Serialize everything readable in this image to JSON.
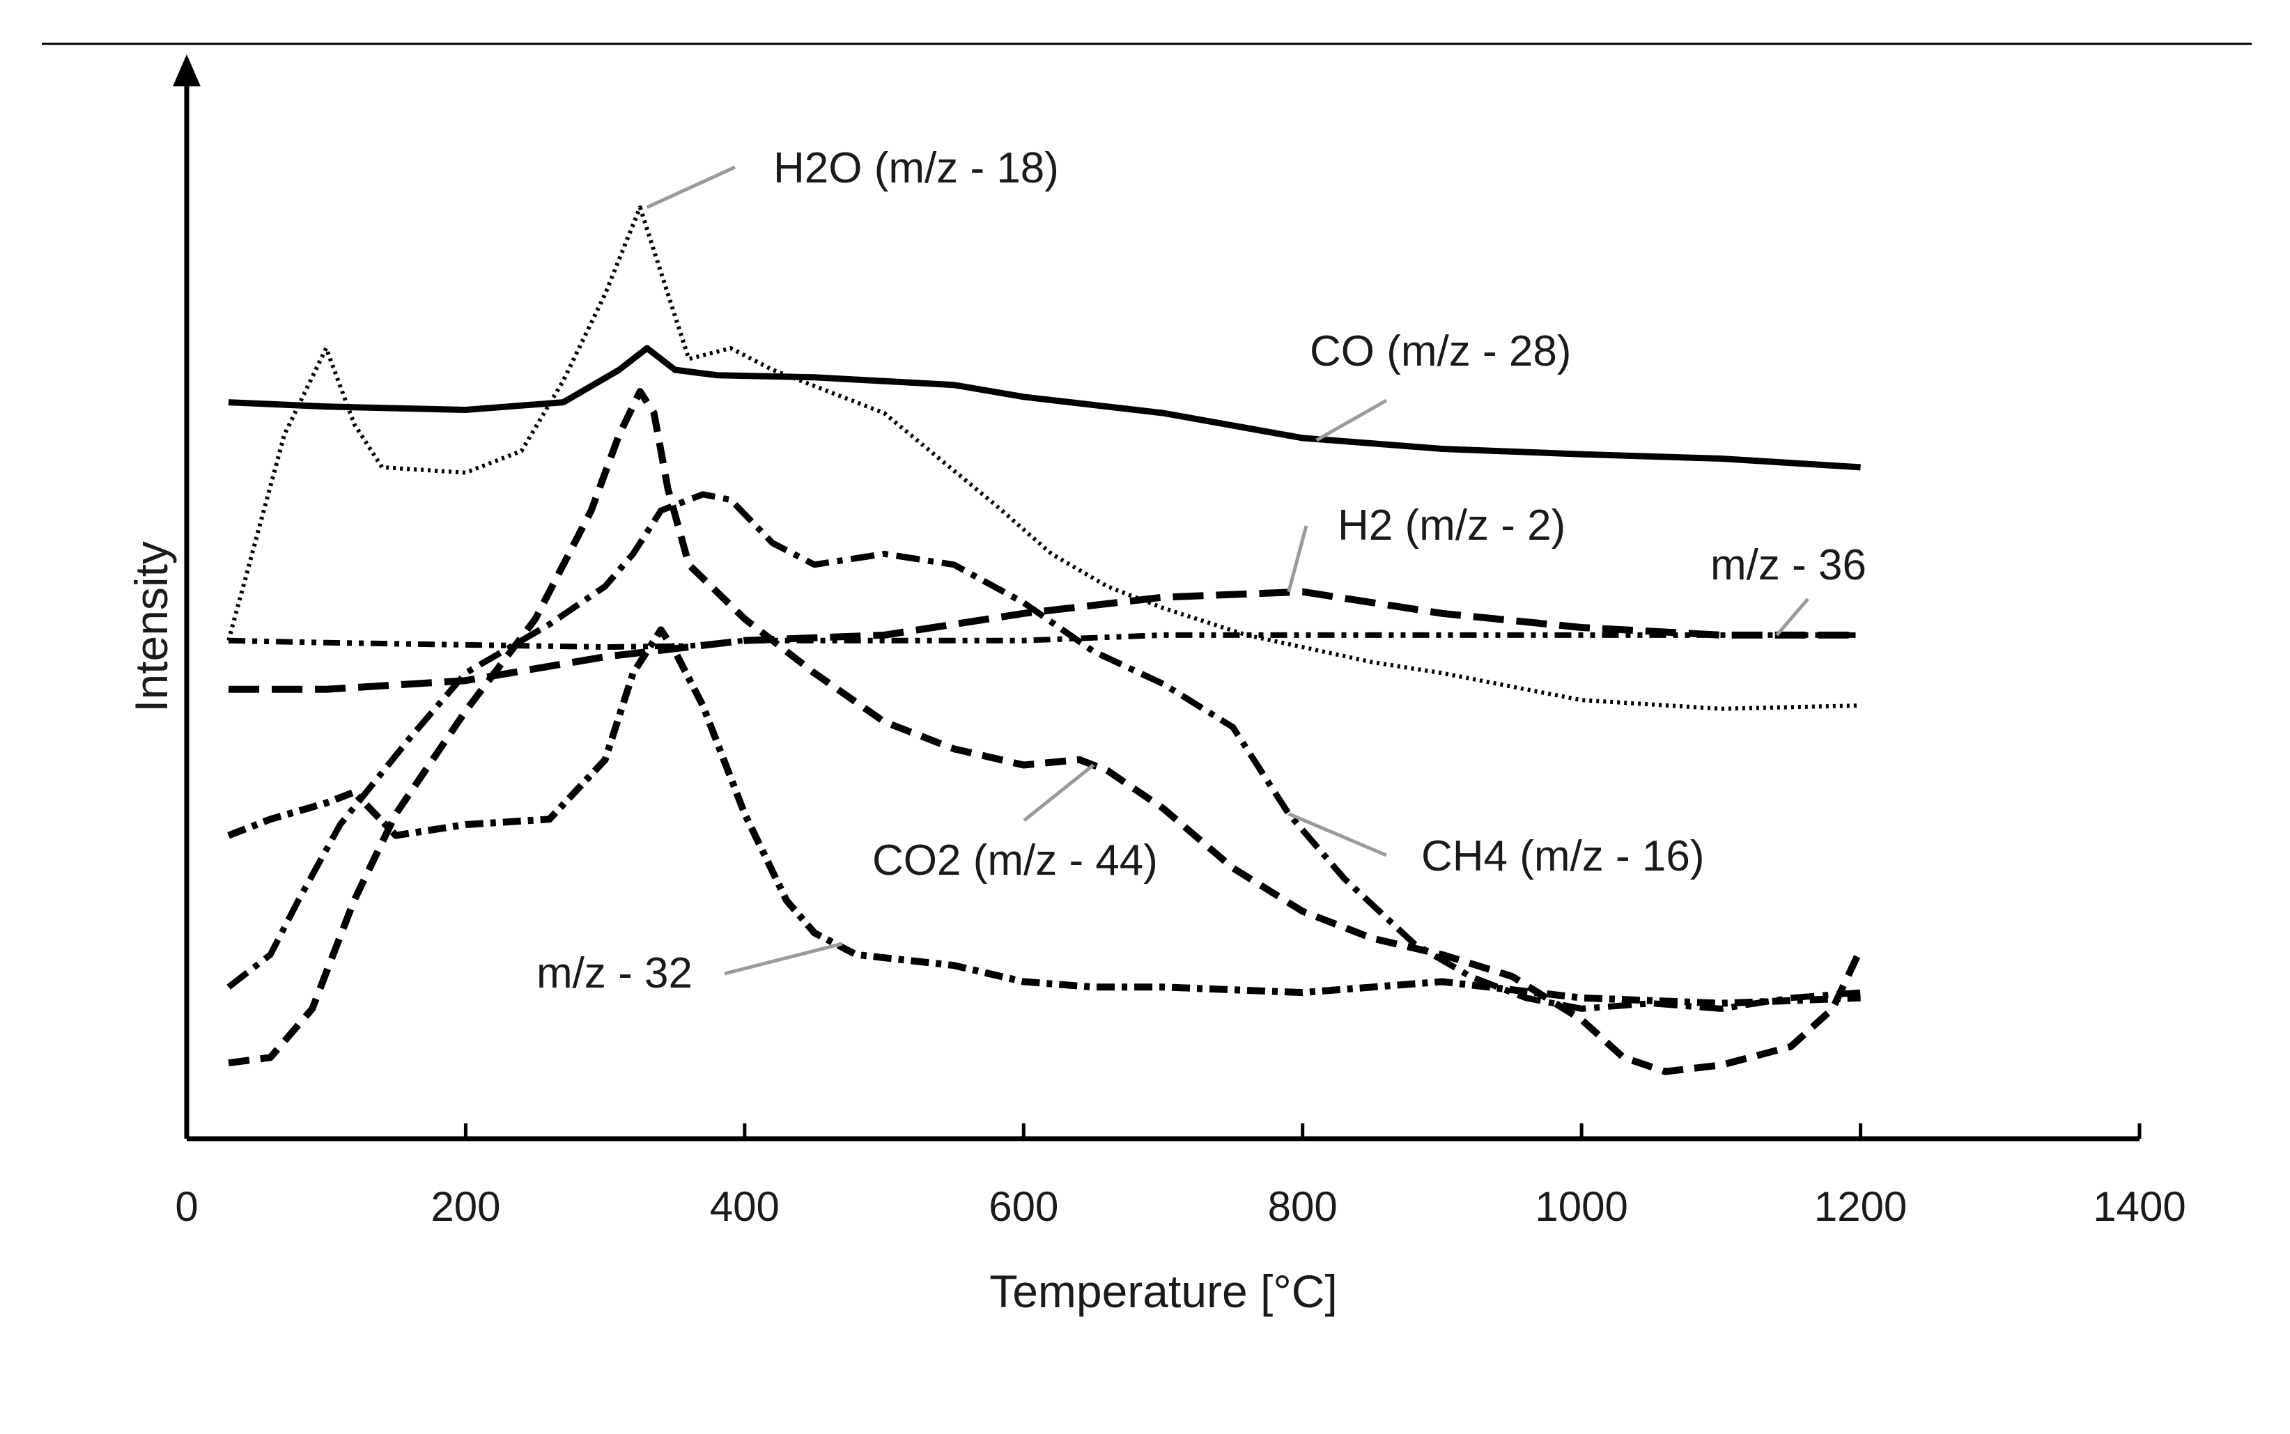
{
  "chart_data": {
    "type": "line",
    "title": "",
    "xlabel": "Temperature [°C]",
    "ylabel": "Intensity",
    "xlim": [
      0,
      1400
    ],
    "ylim": [
      0,
      100
    ],
    "y_ticks_shown": false,
    "grid": false,
    "x_ticks": [
      0,
      200,
      400,
      600,
      800,
      1000,
      1200,
      1400
    ],
    "x_tick_labels": [
      "0",
      "200",
      "400",
      "600",
      "800",
      "1000",
      "1200",
      "1400"
    ],
    "series": [
      {
        "name": "CO (m/z - 28)",
        "style": "solid",
        "x": [
          30,
          100,
          200,
          270,
          310,
          330,
          350,
          380,
          450,
          550,
          600,
          700,
          800,
          900,
          1000,
          1100,
          1200
        ],
        "y": [
          68,
          67.6,
          67.3,
          68,
          71,
          73,
          71,
          70.5,
          70.3,
          69.6,
          68.5,
          67,
          64.7,
          63.7,
          63.2,
          62.8,
          62
        ]
      },
      {
        "name": "H2O (m/z - 18)",
        "style": "dotted",
        "x": [
          30,
          70,
          100,
          120,
          140,
          200,
          240,
          270,
          300,
          325,
          345,
          360,
          390,
          420,
          500,
          580,
          620,
          660,
          700,
          760,
          850,
          900,
          1000,
          1100,
          1200
        ],
        "y": [
          46,
          65,
          73,
          66,
          62,
          61.5,
          63.5,
          70,
          78,
          86,
          78,
          72,
          73,
          71,
          67,
          58.5,
          54,
          51,
          49,
          46.5,
          44,
          43,
          40.5,
          39.7,
          40
        ]
      },
      {
        "name": "H2 (m/z - 2)",
        "style": "long-dash",
        "x": [
          30,
          100,
          200,
          300,
          400,
          500,
          600,
          700,
          800,
          900,
          1000,
          1100,
          1200
        ],
        "y": [
          41.5,
          41.5,
          42.3,
          44.5,
          46,
          46.5,
          48.5,
          50,
          50.5,
          48.5,
          47.2,
          46.5,
          46.5
        ]
      },
      {
        "name": "m/z - 36",
        "style": "dash-dot-dot",
        "x": [
          30,
          100,
          200,
          300,
          360,
          400,
          500,
          600,
          700,
          800,
          900,
          1000,
          1100,
          1200
        ],
        "y": [
          46,
          45.8,
          45.6,
          45.4,
          45.5,
          46,
          46,
          46,
          46.5,
          46.5,
          46.5,
          46.5,
          46.5,
          46.5
        ]
      },
      {
        "name": "CO2 (m/z - 44)",
        "style": "dashed",
        "x": [
          30,
          60,
          90,
          120,
          150,
          200,
          250,
          290,
          310,
          325,
          335,
          345,
          360,
          400,
          450,
          500,
          550,
          600,
          640,
          660,
          700,
          750,
          800,
          850,
          900,
          950,
          1000,
          1030,
          1060,
          1100,
          1150,
          1180,
          1200
        ],
        "y": [
          7,
          7.5,
          12,
          22,
          30,
          39.5,
          48,
          58,
          65,
          69,
          67,
          60,
          53,
          48,
          43,
          38.5,
          36,
          34.5,
          35,
          34,
          30.5,
          25,
          21,
          18.5,
          17,
          15,
          11,
          7.5,
          6.2,
          6.8,
          8.5,
          12,
          17.5
        ]
      },
      {
        "name": "CH4 (m/z - 16)",
        "style": "dash-dot",
        "x": [
          30,
          60,
          80,
          110,
          160,
          200,
          260,
          300,
          320,
          340,
          370,
          390,
          420,
          450,
          500,
          550,
          600,
          650,
          700,
          750,
          790,
          830,
          880,
          920,
          960,
          1000,
          1050,
          1100,
          1150,
          1200
        ],
        "y": [
          14,
          17,
          22,
          29,
          37,
          43,
          47.5,
          51,
          54,
          58,
          59.5,
          59,
          55,
          53,
          54,
          53,
          49.5,
          45,
          42,
          38,
          30,
          24,
          18,
          15,
          13,
          12,
          12.5,
          12,
          13,
          13.5
        ]
      },
      {
        "name": "m/z - 32",
        "style": "dash-dot-dash",
        "x": [
          30,
          60,
          100,
          120,
          150,
          200,
          260,
          300,
          320,
          340,
          350,
          370,
          400,
          430,
          450,
          480,
          550,
          600,
          650,
          700,
          800,
          900,
          1000,
          1100,
          1200
        ],
        "y": [
          28,
          29.5,
          31,
          32,
          28,
          29,
          29.5,
          35,
          43,
          47,
          45,
          40,
          30,
          22,
          19,
          17,
          16,
          14.5,
          14,
          14,
          13.5,
          14.5,
          13,
          12.5,
          13
        ]
      }
    ],
    "annotations": [
      {
        "text": "H2O (m/z - 18)",
        "series": "H2O (m/z - 18)",
        "x": 330,
        "y": 86
      },
      {
        "text": "CO (m/z - 28)",
        "series": "CO (m/z - 28)",
        "x": 810,
        "y": 64.5
      },
      {
        "text": "H2 (m/z - 2)",
        "series": "H2 (m/z - 2)",
        "x": 790,
        "y": 50.5
      },
      {
        "text": "m/z - 36",
        "series": "m/z - 36",
        "x": 1140,
        "y": 46.5
      },
      {
        "text": "CO2 (m/z - 44)",
        "series": "CO2 (m/z - 44)",
        "x": 650,
        "y": 34.5
      },
      {
        "text": "CH4 (m/z - 16)",
        "series": "CH4 (m/z - 16)",
        "x": 790,
        "y": 30
      },
      {
        "text": "m/z - 32",
        "series": "m/z - 32",
        "x": 470,
        "y": 18
      }
    ]
  }
}
